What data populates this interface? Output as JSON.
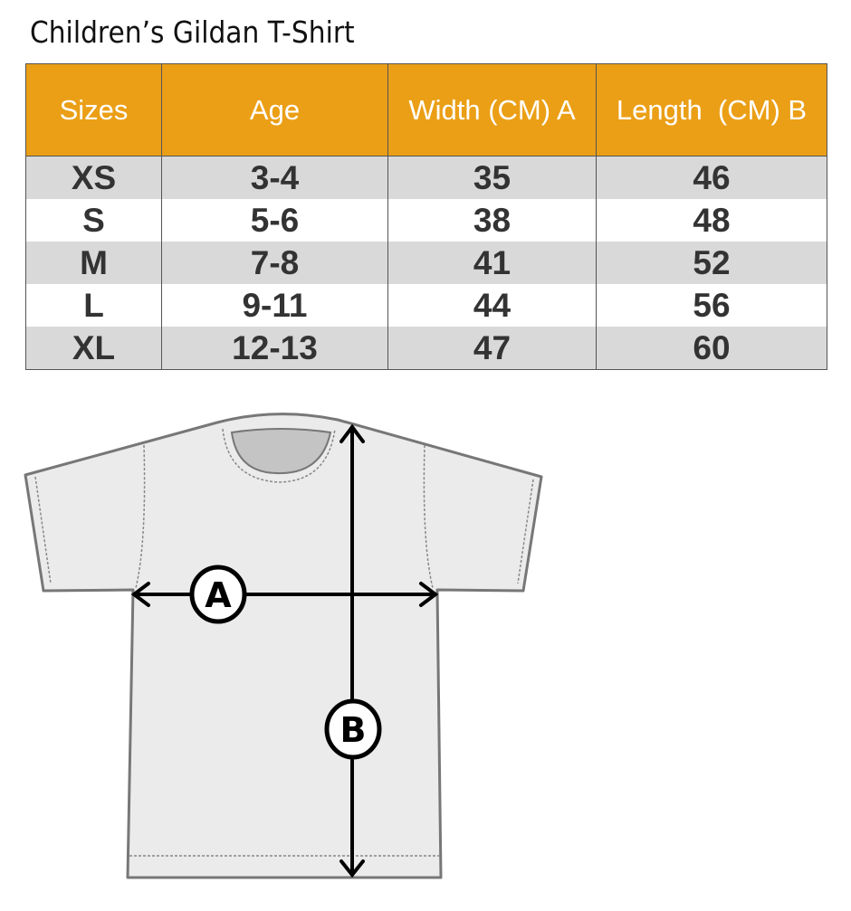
{
  "title": "Children’s Gildan T-Shirt",
  "colors": {
    "header": "#eb9f16",
    "row_alt": "#d9d9d9",
    "text": "#333333"
  },
  "table": {
    "headers": [
      "Sizes",
      "Age",
      "Width (CM) A",
      "Length  (CM) B"
    ],
    "rows": [
      [
        "XS",
        "3-4",
        "35",
        "46"
      ],
      [
        "S",
        "5-6",
        "38",
        "48"
      ],
      [
        "M",
        "7-8",
        "41",
        "52"
      ],
      [
        "L",
        "9-11",
        "44",
        "56"
      ],
      [
        "XL",
        "12-13",
        "47",
        "60"
      ]
    ]
  },
  "diagram": {
    "label_a": "A",
    "label_b": "B"
  }
}
